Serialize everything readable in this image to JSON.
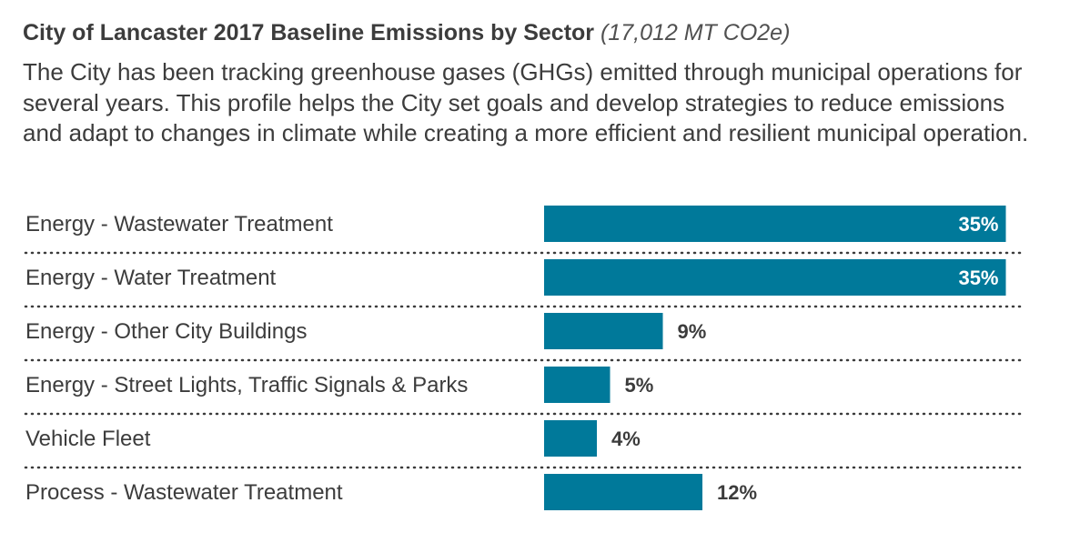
{
  "header": {
    "title": "City of Lancaster 2017 Baseline Emissions by Sector",
    "subtitle": "(17,012 MT CO2e)",
    "description": "The City has been tracking greenhouse gases (GHGs) emitted through municipal operations for several years. This profile helps the City set goals and develop strategies to reduce emissions and adapt to changes in climate while creating a more efficient and resilient municipal operation."
  },
  "colors": {
    "bar": "#00799a",
    "label_inside": "#ffffff",
    "label_outside": "#3c3c3c",
    "divider": "#3c3c3c"
  },
  "chart_data": {
    "type": "bar",
    "orientation": "horizontal",
    "title": "City of Lancaster 2017 Baseline Emissions by Sector",
    "subtitle": "(17,012 MT CO2e)",
    "xlabel": "",
    "ylabel": "",
    "grid": false,
    "categories": [
      "Energy - Wastewater Treatment",
      "Energy - Water Treatment",
      "Energy - Other City Buildings",
      "Energy - Street Lights, Traffic Signals & Parks",
      "Vehicle Fleet",
      "Process - Wastewater Treatment"
    ],
    "values": [
      35,
      35,
      9,
      5,
      4,
      12
    ],
    "value_labels": [
      "35%",
      "35%",
      "9%",
      "5%",
      "4%",
      "12%"
    ],
    "unit": "%"
  }
}
